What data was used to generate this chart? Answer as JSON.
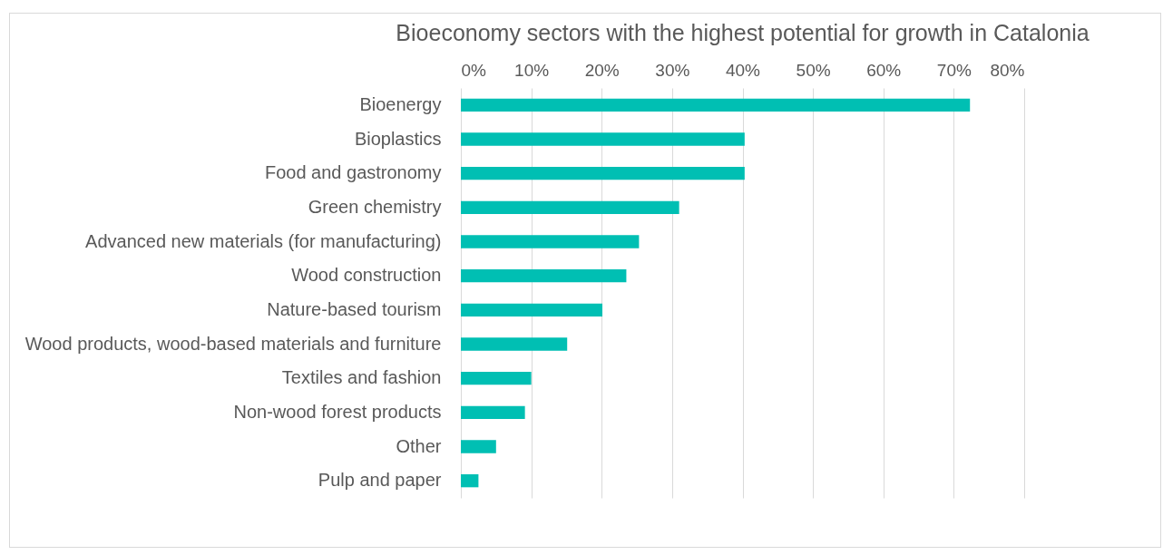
{
  "chart_data": {
    "type": "bar",
    "orientation": "horizontal",
    "title": "Bioeconomy sectors with the highest potential for growth in Catalonia",
    "categories": [
      "Bioenergy",
      "Bioplastics",
      "Food and gastronomy",
      "Green chemistry",
      "Advanced new materials (for manufacturing)",
      "Wood construction",
      "Nature-based tourism",
      "Wood products, wood-based materials and furniture",
      "Textiles and fashion",
      "Non-wood forest products",
      "Other",
      "Pulp and paper"
    ],
    "values": [
      72.3,
      40.3,
      40.3,
      31,
      25.3,
      23.5,
      20.1,
      15.1,
      10,
      9.1,
      5,
      2.5
    ],
    "color": "#00bfb3",
    "xlim": [
      0,
      80
    ],
    "xticks": [
      {
        "value": 0,
        "label": "0%"
      },
      {
        "value": 10,
        "label": "10%"
      },
      {
        "value": 20,
        "label": "20%"
      },
      {
        "value": 30,
        "label": "30%"
      },
      {
        "value": 40,
        "label": "40%"
      },
      {
        "value": 50,
        "label": "50%"
      },
      {
        "value": 60,
        "label": "60%"
      },
      {
        "value": 70,
        "label": "70%"
      },
      {
        "value": 80,
        "label": "80%"
      }
    ],
    "grid": "x"
  }
}
